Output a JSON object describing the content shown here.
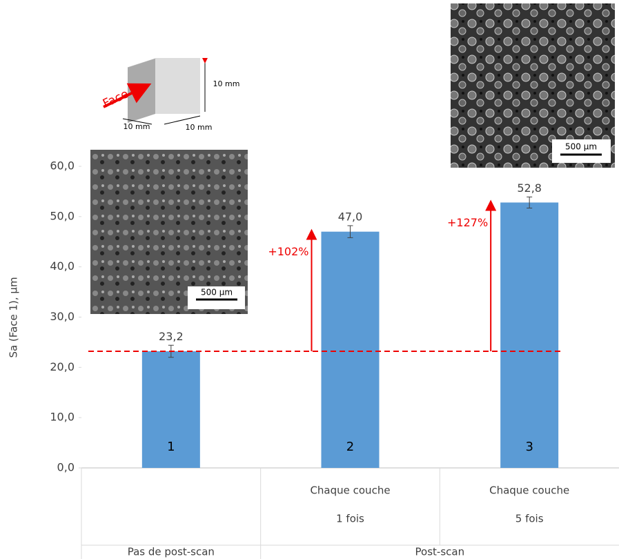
{
  "chart_data": {
    "type": "bar",
    "y_label": "Sa (Face 1), µm",
    "categories": [
      null,
      "Chaque couche",
      "Chaque couche"
    ],
    "category_sublabels": [
      null,
      "1 fois",
      "5 fois"
    ],
    "groups": [
      "Pas de post-scan",
      "Post-scan"
    ],
    "bar_numbers": [
      "1",
      "2",
      "3"
    ],
    "values": [
      23.2,
      47.0,
      52.8
    ],
    "value_labels": [
      "23,2",
      "47,0",
      "52,8"
    ],
    "errors": [
      1.2,
      1.2,
      1.1
    ],
    "color": "#5b9bd5",
    "ylim": [
      0,
      60
    ],
    "yticks": [
      {
        "value": 0,
        "label": "0,0"
      },
      {
        "value": 10,
        "label": "10,0"
      },
      {
        "value": 20,
        "label": "20,0"
      },
      {
        "value": 30,
        "label": "30,0"
      },
      {
        "value": 40,
        "label": "40,0"
      },
      {
        "value": 50,
        "label": "50,0"
      },
      {
        "value": 60,
        "label": "60,0"
      }
    ],
    "increase_labels": [
      "+102%",
      "+127%"
    ],
    "scale_bar_labels": [
      "500 µm",
      "500 µm"
    ],
    "cube_face_label": "Face 1",
    "cube_dimension_labels": [
      "10 mm",
      "10 mm",
      "10 mm"
    ]
  }
}
